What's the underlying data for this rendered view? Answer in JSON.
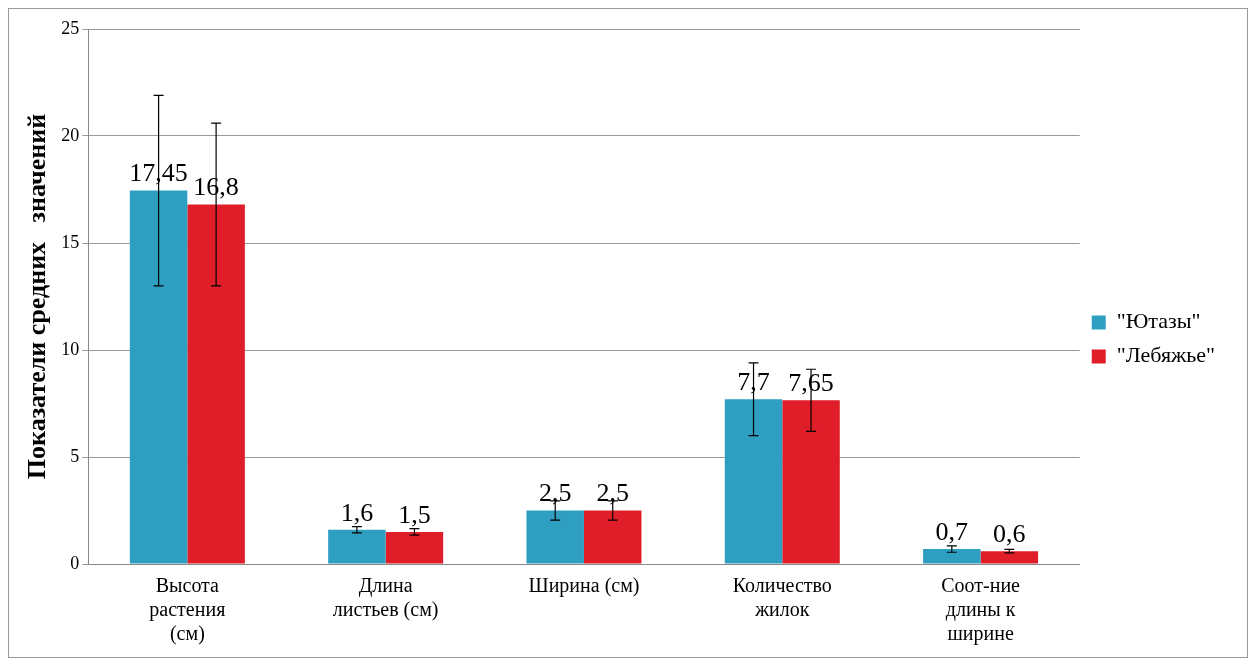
{
  "chart_data": {
    "type": "bar",
    "ylabel": "Показатели средних   значений",
    "categories": [
      "Высота растения (см)",
      "Длина листьев (см)",
      "Ширина (см)",
      "Количество жилок",
      "Соот-ние длины к ширине"
    ],
    "series": [
      {
        "name": "\"Ютазы\"",
        "color": "#2e9fc0",
        "values": [
          17.45,
          1.6,
          2.5,
          7.7,
          0.7
        ],
        "errors": [
          4.45,
          0.15,
          0.45,
          1.7,
          0.15
        ],
        "value_labels": [
          "17,45",
          "1,6",
          "2,5",
          "7,7",
          "0,7"
        ]
      },
      {
        "name": "\"Лебяжье\"",
        "color": "#e01e2a",
        "values": [
          16.8,
          1.5,
          2.5,
          7.65,
          0.6
        ],
        "errors": [
          3.8,
          0.15,
          0.45,
          1.45,
          0.08
        ],
        "value_labels": [
          "16,8",
          "1,5",
          "2,5",
          "7,65",
          "0,6"
        ]
      }
    ],
    "ylim": [
      0,
      25
    ],
    "yticks": [
      0,
      5,
      10,
      15,
      20,
      25
    ],
    "grid": "y",
    "legend": "right"
  }
}
